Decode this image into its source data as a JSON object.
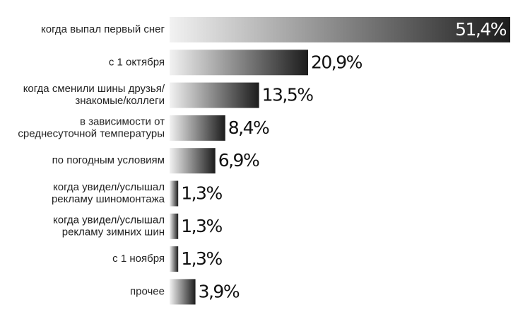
{
  "chart_data": {
    "type": "bar",
    "orientation": "horizontal",
    "categories": [
      [
        "когда выпал первый снег"
      ],
      [
        "с 1 октября"
      ],
      [
        "когда сменили шины друзья/",
        "знакомые/коллеги"
      ],
      [
        "в зависимости от",
        "среднесуточной температуры"
      ],
      [
        "по погодным условиям"
      ],
      [
        "когда увидел/услышал",
        "рекламу шиномонтажа"
      ],
      [
        "когда увидел/услышал",
        "рекламу зимних шин"
      ],
      [
        "с 1 ноября"
      ],
      [
        "прочее"
      ]
    ],
    "values": [
      51.4,
      20.9,
      13.5,
      8.4,
      6.9,
      1.3,
      1.3,
      1.3,
      3.9
    ],
    "value_labels": [
      "51,4%",
      "20,9%",
      "13,5%",
      "8,4%",
      "6,9%",
      "1,3%",
      "1,3%",
      "1,3%",
      "3,9%"
    ],
    "xlim": [
      0,
      51.4
    ],
    "gradient": [
      "#f2f2f2",
      "#1c1c1c"
    ]
  }
}
